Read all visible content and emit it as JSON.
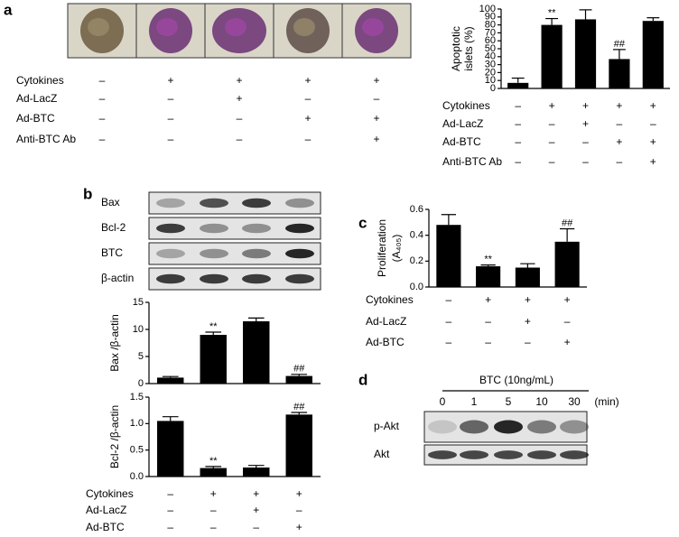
{
  "panel_labels": [
    "a",
    "b",
    "c",
    "d"
  ],
  "micrographs": {
    "conditions": [
      {
        "label": "Cytokines",
        "marks": [
          "–",
          "+",
          "+",
          "+",
          "+"
        ]
      },
      {
        "label": "Ad-LacZ",
        "marks": [
          "–",
          "–",
          "+",
          "–",
          "–"
        ]
      },
      {
        "label": "Ad-BTC",
        "marks": [
          "–",
          "–",
          "–",
          "+",
          "+"
        ]
      },
      {
        "label": "Anti-BTC Ab",
        "marks": [
          "–",
          "–",
          "–",
          "–",
          "+"
        ]
      }
    ]
  },
  "blot_b": {
    "rows": [
      "Bax",
      "Bcl-2",
      "BTC",
      "β-actin"
    ]
  },
  "blot_d": {
    "title": "BTC (10ng/mL)",
    "lanes": [
      "0",
      "1",
      "5",
      "10",
      "30"
    ],
    "unit": "(min)",
    "rows": [
      "p-Akt",
      "Akt"
    ]
  },
  "chart_data": [
    {
      "type": "bar",
      "ylabel": [
        "Apoptotic",
        "islets (%)"
      ],
      "color": "#000000",
      "values": [
        7,
        80,
        87,
        37,
        85
      ],
      "errors": [
        6,
        8,
        12,
        12,
        4
      ],
      "annotations": [
        null,
        "**",
        null,
        "##",
        null
      ],
      "ylim": [
        0,
        100
      ],
      "yticks": [
        0,
        10,
        20,
        30,
        40,
        50,
        60,
        70,
        80,
        90,
        100
      ],
      "conditions": [
        {
          "label": "Cytokines",
          "marks": [
            "–",
            "+",
            "+",
            "+",
            "+"
          ]
        },
        {
          "label": "Ad-LacZ",
          "marks": [
            "–",
            "–",
            "+",
            "–",
            "–"
          ]
        },
        {
          "label": "Ad-BTC",
          "marks": [
            "–",
            "–",
            "–",
            "+",
            "+"
          ]
        },
        {
          "label": "Anti-BTC Ab",
          "marks": [
            "–",
            "–",
            "–",
            "–",
            "+"
          ]
        }
      ]
    },
    {
      "type": "bar",
      "ylabel": [
        "Bax /β-actin"
      ],
      "color": "#000000",
      "values": [
        1.1,
        9,
        11.5,
        1.4
      ],
      "errors": [
        0.2,
        0.5,
        0.6,
        0.3
      ],
      "annotations": [
        null,
        "**",
        null,
        "##"
      ],
      "ylim": [
        0,
        15
      ],
      "yticks": [
        0,
        5,
        10,
        15
      ]
    },
    {
      "type": "bar",
      "ylabel": [
        "Bcl-2 /β-actin"
      ],
      "color": "#000000",
      "values": [
        1.05,
        0.16,
        0.17,
        1.17
      ],
      "errors": [
        0.08,
        0.03,
        0.04,
        0.04
      ],
      "annotations": [
        null,
        "**",
        null,
        "##"
      ],
      "ylim": [
        0,
        1.5
      ],
      "yticks": [
        {
          "value": 0,
          "label": "0.0"
        },
        0.5,
        {
          "value": 1,
          "label": "1.0"
        },
        1.5
      ],
      "conditions": [
        {
          "label": "Cytokines",
          "marks": [
            "–",
            "+",
            "+",
            "+"
          ]
        },
        {
          "label": "Ad-LacZ",
          "marks": [
            "–",
            "–",
            "+",
            "–"
          ]
        },
        {
          "label": "Ad-BTC",
          "marks": [
            "–",
            "–",
            "–",
            "+"
          ]
        }
      ]
    },
    {
      "type": "bar",
      "ylabel": [
        "Proliferation",
        "(A₄₀₅)"
      ],
      "color": "#000000",
      "values": [
        0.48,
        0.16,
        0.15,
        0.35
      ],
      "errors": [
        0.08,
        0.01,
        0.03,
        0.1
      ],
      "annotations": [
        null,
        "**",
        null,
        "##"
      ],
      "ylim": [
        0,
        0.6
      ],
      "yticks": [
        {
          "value": 0,
          "label": "0.0"
        },
        0.2,
        0.4,
        0.6
      ],
      "conditions": [
        {
          "label": "Cytokines",
          "marks": [
            "–",
            "+",
            "+",
            "+"
          ]
        },
        {
          "label": "Ad-LacZ",
          "marks": [
            "–",
            "–",
            "+",
            "–"
          ]
        },
        {
          "label": "Ad-BTC",
          "marks": [
            "–",
            "–",
            "–",
            "+"
          ]
        }
      ]
    }
  ]
}
